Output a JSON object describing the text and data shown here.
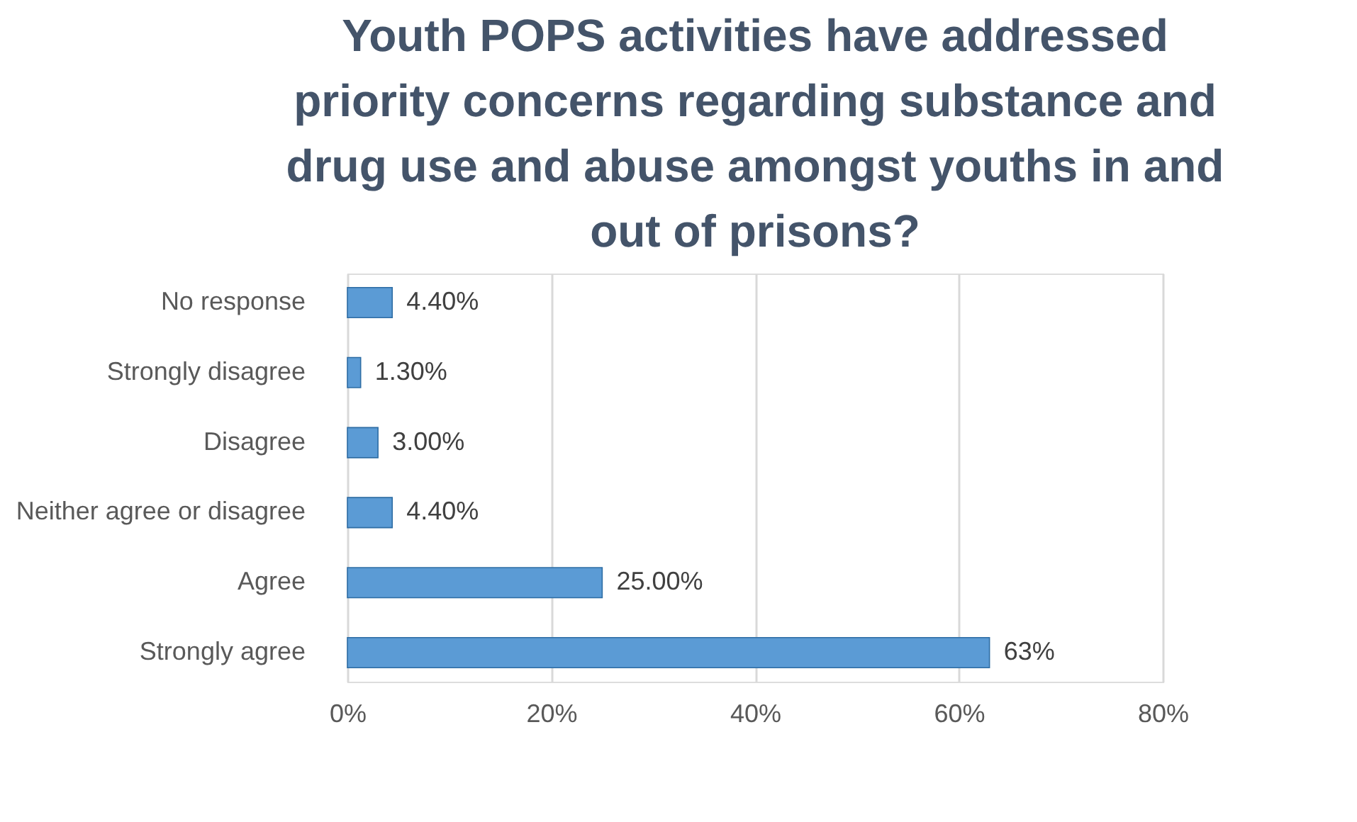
{
  "chart_data": {
    "type": "bar",
    "orientation": "horizontal",
    "title": "Youth POPS activities have addressed priority concerns regarding substance and drug use and abuse amongst youths in and out of prisons?",
    "categories": [
      "No response",
      "Strongly disagree",
      "Disagree",
      "Neither agree or disagree",
      "Agree",
      "Strongly agree"
    ],
    "values": [
      4.4,
      1.3,
      3.0,
      4.4,
      25.0,
      63
    ],
    "value_labels": [
      "4.40%",
      "1.30%",
      "3.00%",
      "4.40%",
      "25.00%",
      "63%"
    ],
    "color": "#5b9bd5",
    "xlim": [
      0,
      80
    ],
    "xticks": [
      {
        "value": 0,
        "label": "0%"
      },
      {
        "value": 20,
        "label": "20%"
      },
      {
        "value": 40,
        "label": "40%"
      },
      {
        "value": 60,
        "label": "60%"
      },
      {
        "value": 80,
        "label": "80%"
      }
    ],
    "grid": "x"
  }
}
